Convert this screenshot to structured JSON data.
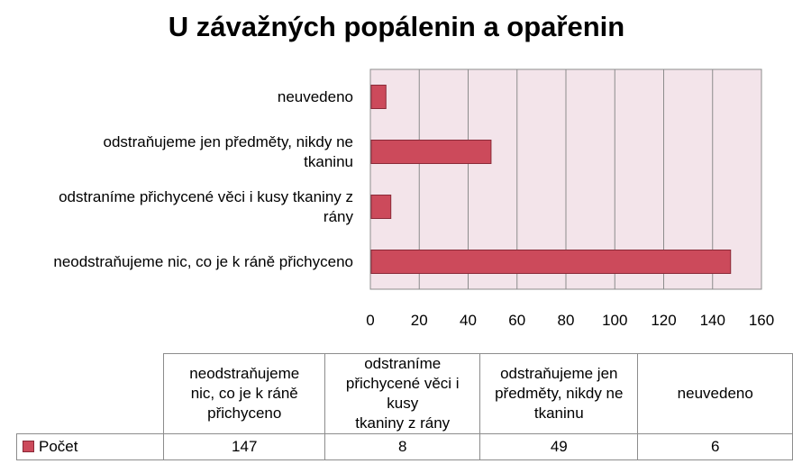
{
  "chart_data": {
    "type": "bar",
    "orientation": "horizontal",
    "title": "U závažných popálenin a opařenin",
    "categories": [
      "neodstraňujeme nic, co je k ráně přichyceno",
      "odstraníme přichycené věci i kusy tkaniny z rány",
      "odstraňujeme jen předměty, nikdy ne tkaninu",
      "neuvedeno"
    ],
    "category_lines": [
      [
        "neodstraňujeme nic, co je k ráně přichyceno"
      ],
      [
        "odstraníme přichycené věci i kusy tkaniny z",
        "rány"
      ],
      [
        "odstraňujeme jen předměty, nikdy ne",
        "tkaninu"
      ],
      [
        "neuvedeno"
      ]
    ],
    "series": [
      {
        "name": "Počet",
        "values": [
          147,
          8,
          49,
          6
        ],
        "color": "#cc4a5b"
      }
    ],
    "xlim": [
      0,
      160
    ],
    "xticks": [
      "0",
      "20",
      "40",
      "60",
      "80",
      "100",
      "120",
      "140",
      "160"
    ],
    "grid": true,
    "plot_background": "#f3e4ea",
    "data_table": {
      "headers": [
        "neodstraňujeme nic, co je k ráně přichyceno",
        "odstraníme přichycené věci i kusy tkaniny z rány",
        "odstraňujeme jen předměty, nikdy ne tkaninu",
        "neuvedeno"
      ],
      "header_lines": [
        [
          "neodstraňujeme",
          "nic, co je k ráně",
          "přichyceno"
        ],
        [
          "odstraníme",
          "přichycené věci i kusy",
          "tkaniny z rány"
        ],
        [
          "odstraňujeme jen",
          "předměty, nikdy ne",
          "tkaninu"
        ],
        [
          "neuvedeno"
        ]
      ],
      "series_label": "Počet",
      "values": [
        "147",
        "8",
        "49",
        "6"
      ]
    }
  }
}
